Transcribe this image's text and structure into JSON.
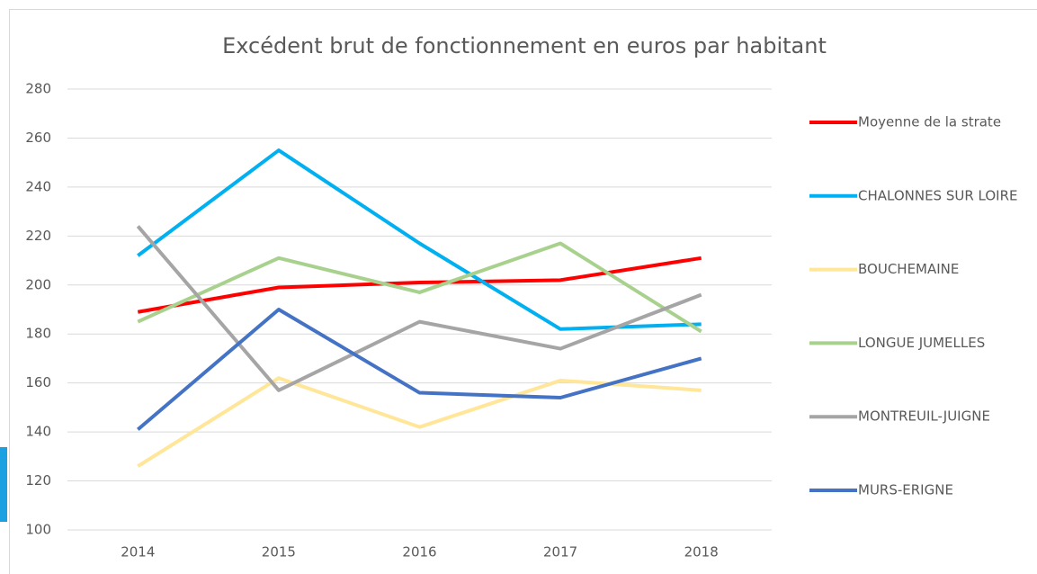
{
  "chart_data": {
    "type": "line",
    "title": "Excédent brut de fonctionnement en euros par habitant",
    "categories": [
      "2014",
      "2015",
      "2016",
      "2017",
      "2018"
    ],
    "series": [
      {
        "name": "Moyenne de la strate",
        "color": "#ff0000",
        "values": [
          189,
          199,
          201,
          202,
          211
        ]
      },
      {
        "name": "CHALONNES SUR LOIRE",
        "color": "#00b0f0",
        "values": [
          212,
          255,
          217,
          182,
          184
        ]
      },
      {
        "name": "BOUCHEMAINE",
        "color": "#ffe699",
        "values": [
          126,
          162,
          142,
          161,
          157
        ]
      },
      {
        "name": "LONGUE JUMELLES",
        "color": "#a9d18e",
        "values": [
          185,
          211,
          197,
          217,
          181
        ]
      },
      {
        "name": "MONTREUIL-JUIGNE",
        "color": "#a5a5a5",
        "values": [
          224,
          157,
          185,
          174,
          196
        ]
      },
      {
        "name": "MURS-ERIGNE",
        "color": "#4472c4",
        "values": [
          141,
          190,
          156,
          154,
          170
        ]
      }
    ],
    "ylim": [
      100,
      280
    ],
    "yticks": [
      100,
      120,
      140,
      160,
      180,
      200,
      220,
      240,
      260,
      280
    ],
    "grid": true,
    "legend": "right"
  }
}
